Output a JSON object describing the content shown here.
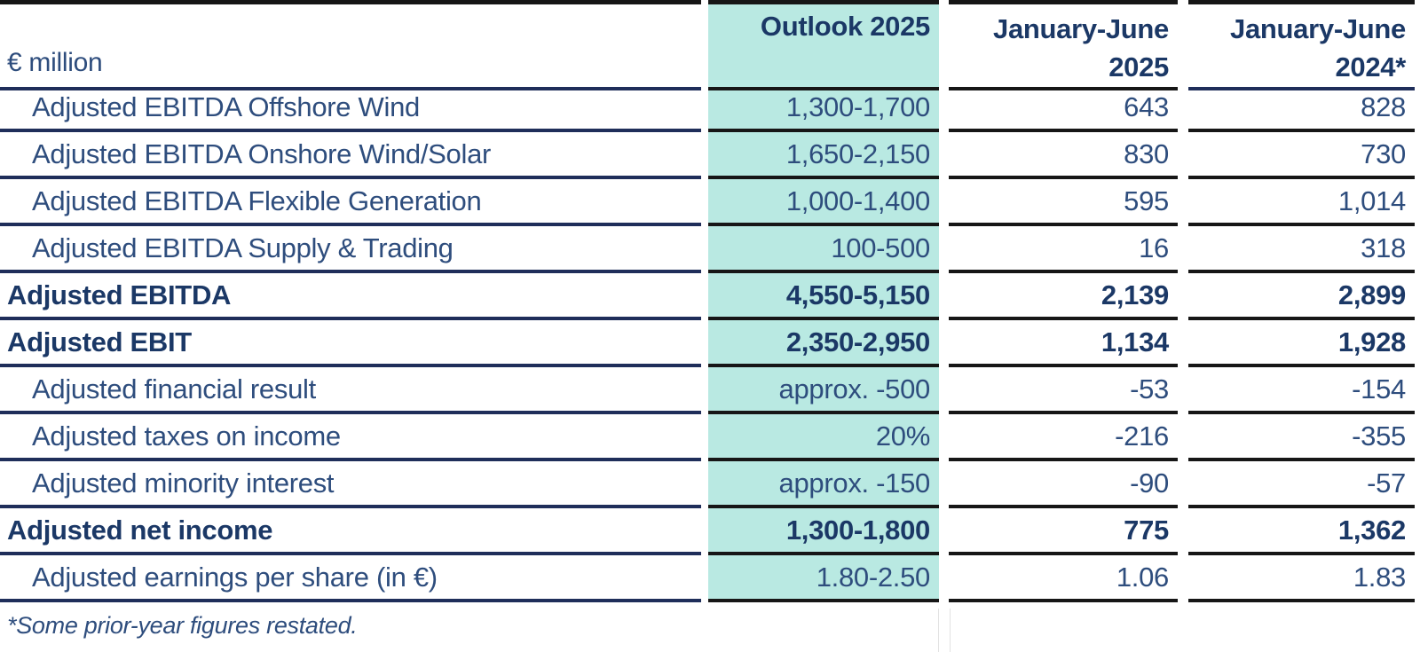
{
  "table": {
    "unit_label": "€ million",
    "columns": {
      "outlook": "Outlook 2025",
      "h1_2025": "January-June\n2025",
      "h1_2024": "January-June\n2024*"
    },
    "rows": [
      {
        "label": "Adjusted EBITDA Offshore Wind",
        "bold": false,
        "outlook": "1,300-1,700",
        "h1_2025": "643",
        "h1_2024": "828"
      },
      {
        "label": "Adjusted EBITDA Onshore Wind/Solar",
        "bold": false,
        "outlook": "1,650-2,150",
        "h1_2025": "830",
        "h1_2024": "730"
      },
      {
        "label": "Adjusted EBITDA Flexible Generation",
        "bold": false,
        "outlook": "1,000-1,400",
        "h1_2025": "595",
        "h1_2024": "1,014"
      },
      {
        "label": "Adjusted EBITDA Supply & Trading",
        "bold": false,
        "outlook": "100-500",
        "h1_2025": "16",
        "h1_2024": "318"
      },
      {
        "label": "Adjusted EBITDA",
        "bold": true,
        "outlook": "4,550-5,150",
        "h1_2025": "2,139",
        "h1_2024": "2,899"
      },
      {
        "label": "Adjusted EBIT",
        "bold": true,
        "outlook": "2,350-2,950",
        "h1_2025": "1,134",
        "h1_2024": "1,928"
      },
      {
        "label": "Adjusted financial result",
        "bold": false,
        "outlook": "approx. -500",
        "h1_2025": "-53",
        "h1_2024": "-154"
      },
      {
        "label": "Adjusted taxes on income",
        "bold": false,
        "outlook": "20%",
        "h1_2025": "-216",
        "h1_2024": "-355"
      },
      {
        "label": "Adjusted minority interest",
        "bold": false,
        "outlook": "approx. -150",
        "h1_2025": "-90",
        "h1_2024": "-57"
      },
      {
        "label": "Adjusted net income",
        "bold": true,
        "outlook": "1,300-1,800",
        "h1_2025": "775",
        "h1_2024": "1,362"
      },
      {
        "label": "Adjusted earnings per share (in €)",
        "bold": false,
        "outlook": "1.80-2.50",
        "h1_2025": "1.06",
        "h1_2024": "1.83"
      }
    ],
    "footnote": "*Some prior-year figures restated."
  },
  "colors": {
    "accent_teal": "#b9e9e2",
    "navy_text": "#2e4d7d",
    "navy_bold": "#1b3866",
    "line_navy": "#1f2e5a",
    "line_black": "#161616",
    "page_bg": "#ffffff"
  }
}
